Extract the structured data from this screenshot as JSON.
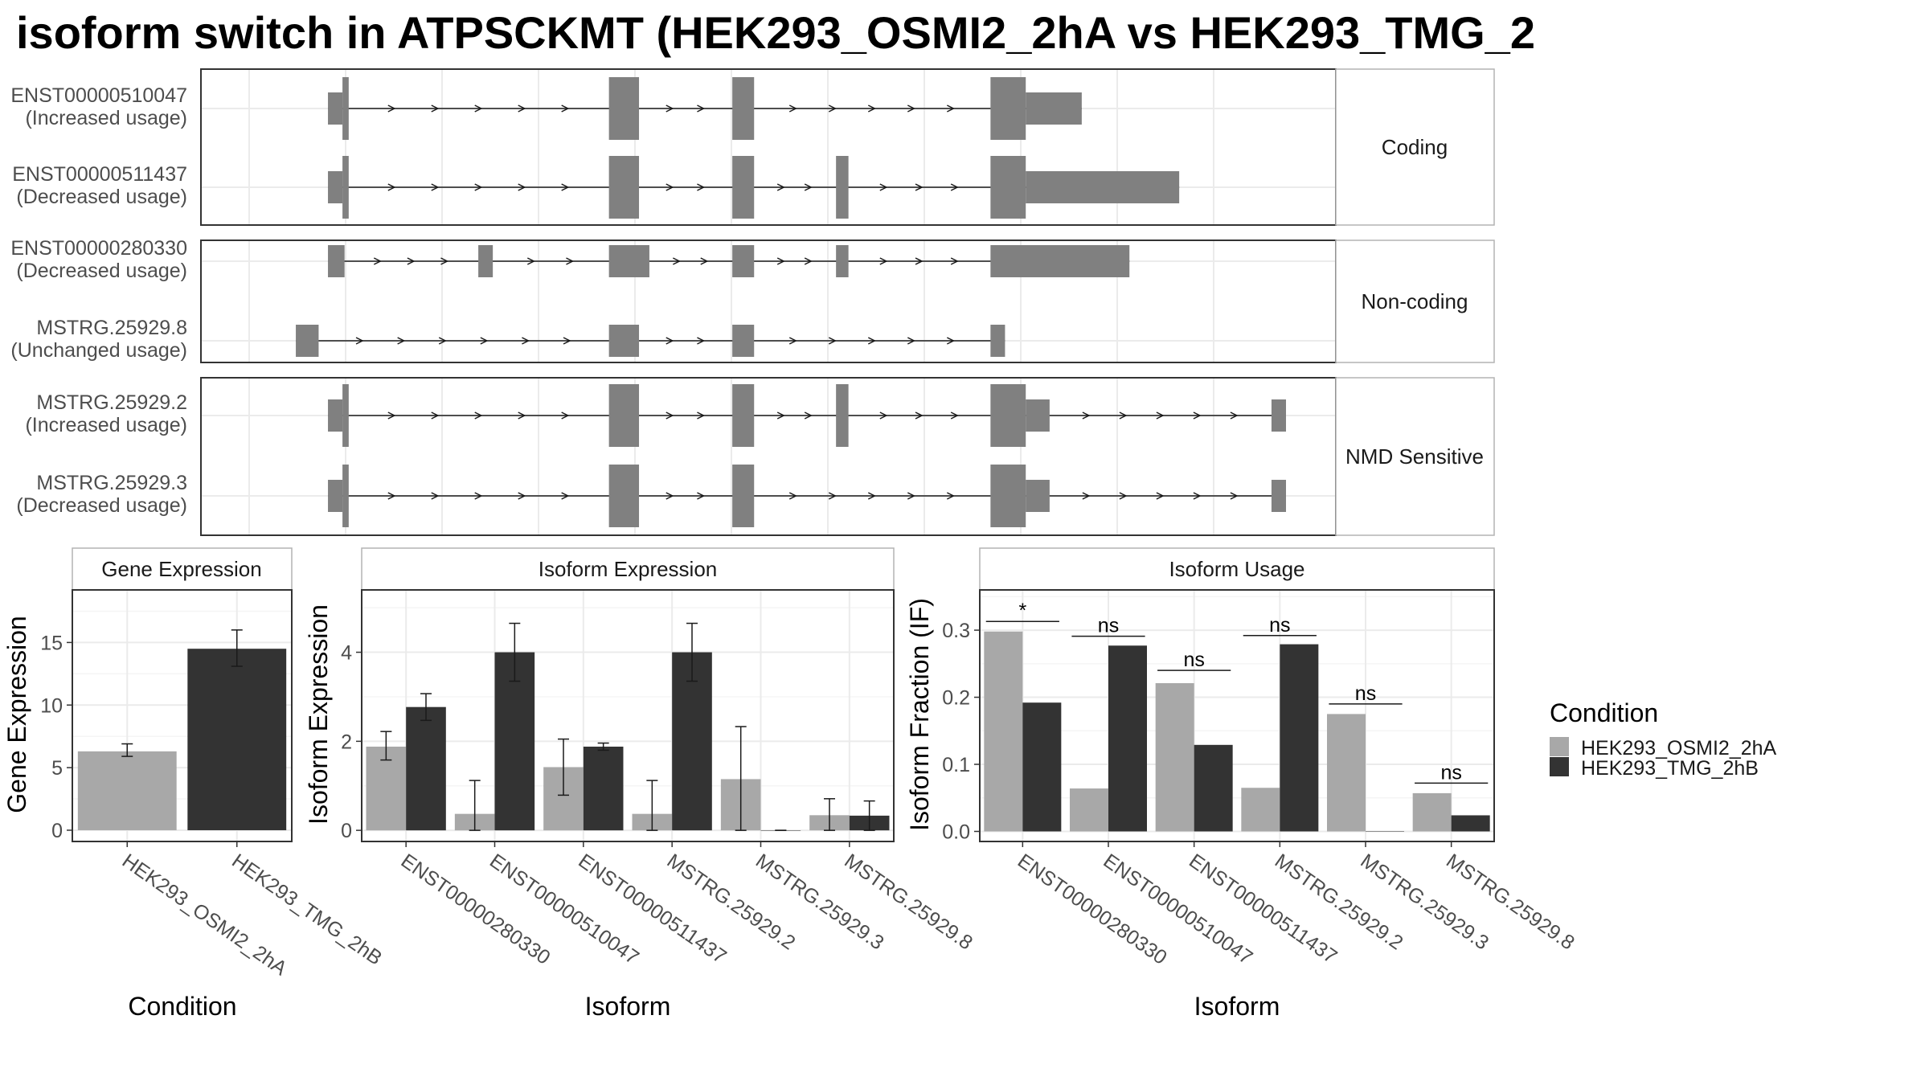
{
  "title": "isoform switch in ATPSCKMT (HEK293_OSMI2_2hA vs HEK293_TMG_2",
  "colors": {
    "exon": "#808080",
    "condA": "#a8a8a8",
    "condB": "#333333",
    "grid": "#ebebeb",
    "border": "#333333",
    "strip_border": "#b3b3b3"
  },
  "transcript_panel": {
    "groups": [
      {
        "label": "Coding",
        "rows": [
          {
            "id": "ENST00000510047",
            "usage": "(Increased usage)",
            "exons": [
              [
                0.076,
                0.09,
                "s"
              ],
              [
                0.09,
                0.096,
                "l"
              ],
              [
                0.347,
                0.376,
                "l"
              ],
              [
                0.466,
                0.487,
                "l"
              ],
              [
                0.715,
                0.749,
                "l"
              ],
              [
                0.749,
                0.803,
                "s"
              ]
            ]
          },
          {
            "id": "ENST00000511437",
            "usage": "(Decreased usage)",
            "exons": [
              [
                0.076,
                0.09,
                "s"
              ],
              [
                0.09,
                0.096,
                "l"
              ],
              [
                0.347,
                0.376,
                "l"
              ],
              [
                0.466,
                0.487,
                "l"
              ],
              [
                0.566,
                0.578,
                "l"
              ],
              [
                0.715,
                0.749,
                "l"
              ],
              [
                0.749,
                0.897,
                "s"
              ]
            ]
          }
        ]
      },
      {
        "label": "Non-coding",
        "rows": [
          {
            "id": "ENST00000280330",
            "usage": "(Decreased usage)",
            "exons": [
              [
                0.076,
                0.092,
                "s"
              ],
              [
                0.221,
                0.235,
                "s"
              ],
              [
                0.347,
                0.386,
                "s"
              ],
              [
                0.466,
                0.487,
                "s"
              ],
              [
                0.566,
                0.578,
                "s"
              ],
              [
                0.715,
                0.849,
                "s"
              ]
            ]
          },
          {
            "id": "MSTRG.25929.8",
            "usage": "(Unchanged usage)",
            "exons": [
              [
                0.045,
                0.067,
                "s"
              ],
              [
                0.347,
                0.376,
                "s"
              ],
              [
                0.466,
                0.487,
                "s"
              ],
              [
                0.715,
                0.729,
                "s"
              ]
            ]
          }
        ]
      },
      {
        "label": "NMD Sensitive",
        "rows": [
          {
            "id": "MSTRG.25929.2",
            "usage": "(Increased usage)",
            "exons": [
              [
                0.076,
                0.09,
                "s"
              ],
              [
                0.09,
                0.096,
                "l"
              ],
              [
                0.347,
                0.376,
                "l"
              ],
              [
                0.466,
                0.487,
                "l"
              ],
              [
                0.566,
                0.578,
                "l"
              ],
              [
                0.715,
                0.749,
                "l"
              ],
              [
                0.749,
                0.772,
                "s"
              ],
              [
                0.986,
                1.0,
                "s"
              ]
            ]
          },
          {
            "id": "MSTRG.25929.3",
            "usage": "(Decreased usage)",
            "exons": [
              [
                0.076,
                0.09,
                "s"
              ],
              [
                0.09,
                0.096,
                "l"
              ],
              [
                0.347,
                0.376,
                "l"
              ],
              [
                0.466,
                0.487,
                "l"
              ],
              [
                0.715,
                0.749,
                "l"
              ],
              [
                0.749,
                0.772,
                "s"
              ],
              [
                0.986,
                1.0,
                "s"
              ]
            ]
          }
        ]
      }
    ]
  },
  "chart_data": [
    {
      "type": "bar",
      "title": "Gene Expression",
      "xlabel": "Condition",
      "ylabel": "Gene Expression",
      "categories": [
        "HEK293_OSMI2_2hA",
        "HEK293_TMG_2hB"
      ],
      "values": [
        6.3,
        14.5
      ],
      "err_low": [
        5.9,
        13.1
      ],
      "err_high": [
        6.9,
        16.0
      ],
      "yticks": [
        "0",
        "5",
        "10",
        "15"
      ],
      "ylim": [
        -0.9,
        19.2
      ]
    },
    {
      "type": "bar",
      "title": "Isoform Expression",
      "xlabel": "Isoform",
      "ylabel": "Isoform Expression",
      "categories": [
        "ENST00000280330",
        "ENST00000510047",
        "ENST00000511437",
        "MSTRG.25929.2",
        "MSTRG.25929.3",
        "MSTRG.25929.8"
      ],
      "series": [
        {
          "name": "HEK293_OSMI2_2hA",
          "values": [
            1.88,
            0.37,
            1.42,
            0.37,
            1.15,
            0.34
          ],
          "err_low": [
            1.58,
            0.0,
            0.79,
            0.0,
            0.0,
            0.0
          ],
          "err_high": [
            2.22,
            1.12,
            2.05,
            1.12,
            2.33,
            0.71
          ]
        },
        {
          "name": "HEK293_TMG_2hB",
          "values": [
            2.77,
            4.0,
            1.88,
            4.0,
            0.0,
            0.33
          ],
          "err_low": [
            2.47,
            3.35,
            1.8,
            3.35,
            0.0,
            0.0
          ],
          "err_high": [
            3.07,
            4.65,
            1.96,
            4.65,
            0.0,
            0.66
          ]
        }
      ],
      "yticks": [
        "0",
        "2",
        "4"
      ],
      "ylim": [
        -0.25,
        5.4
      ]
    },
    {
      "type": "bar",
      "title": "Isoform Usage",
      "xlabel": "Isoform",
      "ylabel": "Isoform Fraction (IF)",
      "categories": [
        "ENST00000280330",
        "ENST00000510047",
        "ENST00000511437",
        "MSTRG.25929.2",
        "MSTRG.25929.3",
        "MSTRG.25929.8"
      ],
      "series": [
        {
          "name": "HEK293_OSMI2_2hA",
          "values": [
            0.298,
            0.064,
            0.221,
            0.065,
            0.175,
            0.057
          ]
        },
        {
          "name": "HEK293_TMG_2hB",
          "values": [
            0.192,
            0.277,
            0.129,
            0.279,
            0.0,
            0.024
          ]
        }
      ],
      "significance": [
        "*",
        "ns",
        "ns",
        "ns",
        "ns",
        "ns"
      ],
      "sig_level": [
        0.313,
        0.291,
        0.24,
        0.292,
        0.19,
        0.072
      ],
      "yticks": [
        "0.0",
        "0.1",
        "0.2",
        "0.3"
      ],
      "ylim": [
        -0.015,
        0.36
      ]
    }
  ],
  "legend": {
    "title": "Condition",
    "entries": [
      "HEK293_OSMI2_2hA",
      "HEK293_TMG_2hB"
    ]
  }
}
